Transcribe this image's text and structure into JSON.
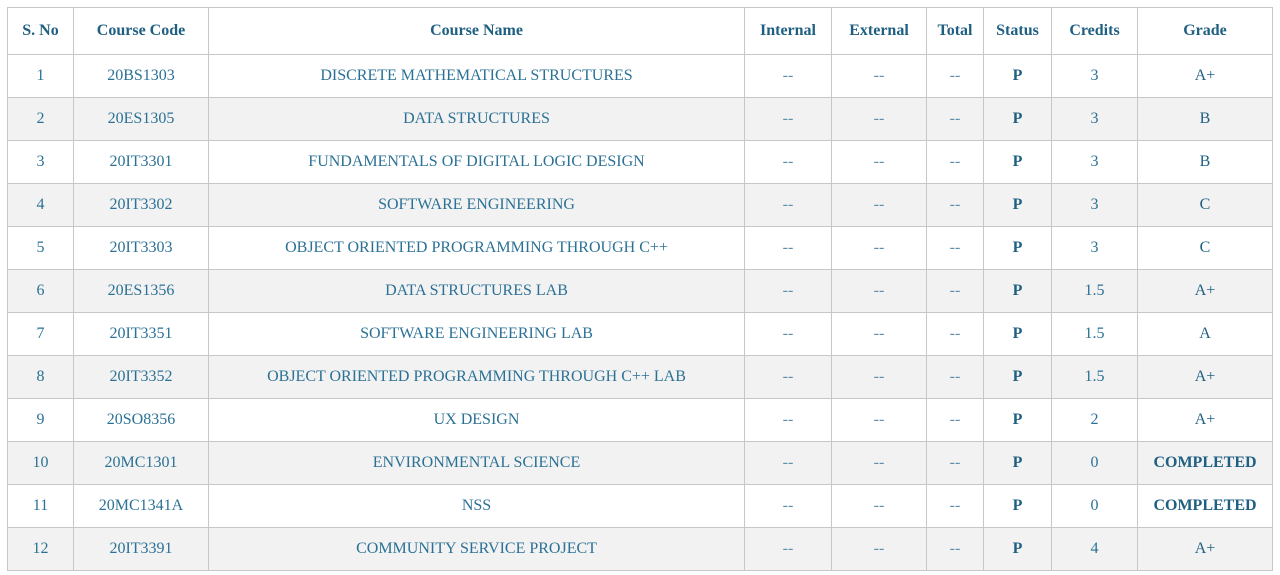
{
  "table": {
    "headers": {
      "sno": "S. No",
      "code": "Course Code",
      "name": "Course Name",
      "internal": "Internal",
      "external": "External",
      "total": "Total",
      "status": "Status",
      "credits": "Credits",
      "grade": "Grade"
    },
    "rows": [
      {
        "sno": "1",
        "code": "20BS1303",
        "name": "DISCRETE MATHEMATICAL STRUCTURES",
        "internal": "--",
        "external": "--",
        "total": "--",
        "status": "P",
        "credits": "3",
        "grade": "A+"
      },
      {
        "sno": "2",
        "code": "20ES1305",
        "name": "DATA STRUCTURES",
        "internal": "--",
        "external": "--",
        "total": "--",
        "status": "P",
        "credits": "3",
        "grade": "B"
      },
      {
        "sno": "3",
        "code": "20IT3301",
        "name": "FUNDAMENTALS OF DIGITAL LOGIC DESIGN",
        "internal": "--",
        "external": "--",
        "total": "--",
        "status": "P",
        "credits": "3",
        "grade": "B"
      },
      {
        "sno": "4",
        "code": "20IT3302",
        "name": "SOFTWARE ENGINEERING",
        "internal": "--",
        "external": "--",
        "total": "--",
        "status": "P",
        "credits": "3",
        "grade": "C"
      },
      {
        "sno": "5",
        "code": "20IT3303",
        "name": "OBJECT ORIENTED PROGRAMMING THROUGH C++",
        "internal": "--",
        "external": "--",
        "total": "--",
        "status": "P",
        "credits": "3",
        "grade": "C"
      },
      {
        "sno": "6",
        "code": "20ES1356",
        "name": "DATA STRUCTURES LAB",
        "internal": "--",
        "external": "--",
        "total": "--",
        "status": "P",
        "credits": "1.5",
        "grade": "A+"
      },
      {
        "sno": "7",
        "code": "20IT3351",
        "name": "SOFTWARE ENGINEERING LAB",
        "internal": "--",
        "external": "--",
        "total": "--",
        "status": "P",
        "credits": "1.5",
        "grade": "A"
      },
      {
        "sno": "8",
        "code": "20IT3352",
        "name": "OBJECT ORIENTED PROGRAMMING THROUGH C++ LAB",
        "internal": "--",
        "external": "--",
        "total": "--",
        "status": "P",
        "credits": "1.5",
        "grade": "A+"
      },
      {
        "sno": "9",
        "code": "20SO8356",
        "name": "UX DESIGN",
        "internal": "--",
        "external": "--",
        "total": "--",
        "status": "P",
        "credits": "2",
        "grade": "A+"
      },
      {
        "sno": "10",
        "code": "20MC1301",
        "name": "ENVIRONMENTAL SCIENCE",
        "internal": "--",
        "external": "--",
        "total": "--",
        "status": "P",
        "credits": "0",
        "grade": "COMPLETED"
      },
      {
        "sno": "11",
        "code": "20MC1341A",
        "name": "NSS",
        "internal": "--",
        "external": "--",
        "total": "--",
        "status": "P",
        "credits": "0",
        "grade": "COMPLETED"
      },
      {
        "sno": "12",
        "code": "20IT3391",
        "name": "COMMUNITY SERVICE PROJECT",
        "internal": "--",
        "external": "--",
        "total": "--",
        "status": "P",
        "credits": "4",
        "grade": "A+"
      }
    ]
  }
}
